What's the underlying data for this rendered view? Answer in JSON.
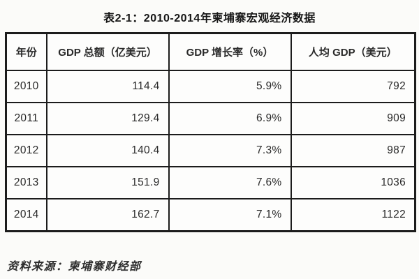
{
  "title": "表2-1：2010-2014年柬埔寨宏观经济数据",
  "table": {
    "headers": [
      "年份",
      "GDP 总额（亿美元）",
      "GDP 增长率（%）",
      "人均 GDP（美元）"
    ],
    "rows": [
      [
        "2010",
        "114.4",
        "5.9%",
        "792"
      ],
      [
        "2011",
        "129.4",
        "6.9%",
        "909"
      ],
      [
        "2012",
        "140.4",
        "7.3%",
        "987"
      ],
      [
        "2013",
        "151.9",
        "7.6%",
        "1036"
      ],
      [
        "2014",
        "162.7",
        "7.1%",
        "1122"
      ]
    ]
  },
  "footer": {
    "source_label": "资料来源：柬埔寨财经部"
  },
  "colors": {
    "border": "#1c1c1c",
    "text": "#2a2a2a",
    "background": "#fbfbf9"
  },
  "chart_data": {
    "type": "table",
    "title": "表2-1：2010-2014年柬埔寨宏观经济数据",
    "columns": [
      "年份",
      "GDP 总额（亿美元）",
      "GDP 增长率（%）",
      "人均 GDP（美元）"
    ],
    "years": [
      2010,
      2011,
      2012,
      2013,
      2014
    ],
    "gdp_total_billion_usd": [
      114.4,
      129.4,
      140.4,
      151.9,
      162.7
    ],
    "gdp_growth_pct": [
      5.9,
      6.9,
      7.3,
      7.6,
      7.1
    ],
    "gdp_per_capita_usd": [
      792,
      909,
      987,
      1036,
      1122
    ],
    "source": "资料来源：柬埔寨财经部"
  }
}
